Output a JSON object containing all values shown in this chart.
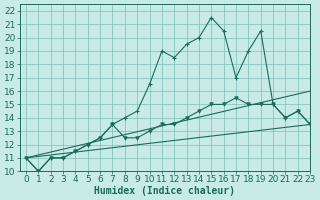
{
  "xlabel": "Humidex (Indice chaleur)",
  "background_color": "#c8ebe8",
  "grid_color": "#7abfba",
  "line_color": "#1a6b5a",
  "xlim": [
    -0.5,
    23
  ],
  "ylim": [
    10,
    22.5
  ],
  "xticks": [
    0,
    1,
    2,
    3,
    4,
    5,
    6,
    7,
    8,
    9,
    10,
    11,
    12,
    13,
    14,
    15,
    16,
    17,
    18,
    19,
    20,
    21,
    22,
    23
  ],
  "yticks": [
    10,
    11,
    12,
    13,
    14,
    15,
    16,
    17,
    18,
    19,
    20,
    21,
    22
  ],
  "series1_x": [
    0,
    1,
    2,
    3,
    4,
    5,
    6,
    7,
    8,
    9,
    10,
    11,
    12,
    13,
    14,
    15,
    16,
    17,
    18,
    19,
    20,
    21,
    22,
    23
  ],
  "series1_y": [
    11,
    10,
    11,
    11,
    11.5,
    12,
    12.5,
    13.5,
    14,
    14.5,
    16.5,
    19,
    18.5,
    19.5,
    20,
    21.5,
    20.5,
    17,
    19,
    20.5,
    15,
    14,
    14.5,
    13.5
  ],
  "series2_x": [
    0,
    1,
    2,
    3,
    4,
    5,
    6,
    7,
    8,
    9,
    10,
    11,
    12,
    13,
    14,
    15,
    16,
    17,
    18,
    19,
    20,
    21,
    22,
    23
  ],
  "series2_y": [
    11,
    10,
    11,
    11,
    11.5,
    12,
    12.5,
    13.5,
    12.5,
    12.5,
    13,
    13.5,
    13.5,
    14,
    14.5,
    15,
    15,
    15.5,
    15,
    15,
    15,
    14,
    14.5,
    13.5
  ],
  "series3_x": [
    0,
    23
  ],
  "series3_y": [
    11,
    16
  ],
  "series4_x": [
    0,
    23
  ],
  "series4_y": [
    11,
    13.5
  ],
  "font_size": 6.5
}
